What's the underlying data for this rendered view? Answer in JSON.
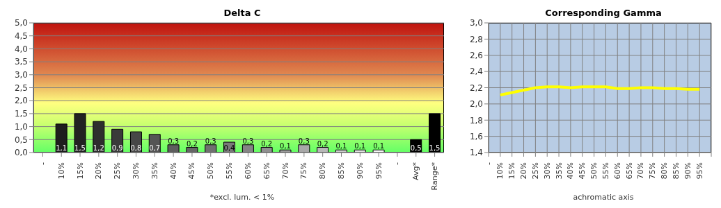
{
  "chart_data": [
    {
      "type": "bar",
      "title": "Delta C",
      "xlabel": "*excl. lum. < 1%",
      "categories": [
        "-",
        "10%",
        "15%",
        "20%",
        "25%",
        "30%",
        "35%",
        "40%",
        "45%",
        "50%",
        "55%",
        "60%",
        "65%",
        "70%",
        "75%",
        "80%",
        "85%",
        "90%",
        "95%",
        "-",
        "Avg*",
        "Range*"
      ],
      "values": [
        null,
        1.1,
        1.5,
        1.2,
        0.9,
        0.8,
        0.7,
        0.3,
        0.2,
        0.3,
        0.4,
        0.3,
        0.2,
        0.1,
        0.3,
        0.2,
        0.1,
        0.1,
        0.1,
        null,
        0.5,
        1.5
      ],
      "value_labels": [
        null,
        "1,1",
        "1,5",
        "1,2",
        "0,9",
        "0,8",
        "0,7",
        "0,3",
        "0,2",
        "0,3",
        "0,4",
        "0,3",
        "0,2",
        "0,1",
        "0,3",
        "0,2",
        "0,1",
        "0,1",
        "0,1",
        null,
        "0,5",
        "1,5"
      ],
      "colors": [
        "#000000",
        "#1e1e1e",
        "#222222",
        "#2e2e2e",
        "#3a3a3a",
        "#474747",
        "#555555",
        "#5e5e5e",
        "#666666",
        "#707070",
        "#7a7a7a",
        "#858585",
        "#909090",
        "#9c9c9c",
        "#a8a8a8",
        "#b8b8b8",
        "#cccccc",
        "#e0e0e0",
        "#f5f5f5",
        "#000000",
        "#000000",
        "#000000"
      ],
      "ylim": [
        0,
        5
      ],
      "yticks": [
        {
          "value": 0,
          "label": "0,0"
        },
        {
          "value": 0.5,
          "label": "0,5"
        },
        {
          "value": 1,
          "label": "1,0"
        },
        {
          "value": 1.5,
          "label": "1,5"
        },
        {
          "value": 2,
          "label": "2,0"
        },
        {
          "value": 2.5,
          "label": "2,5"
        },
        {
          "value": 3,
          "label": "3,0"
        },
        {
          "value": 3.5,
          "label": "3,5"
        },
        {
          "value": 4,
          "label": "4,0"
        },
        {
          "value": 4.5,
          "label": "4,5"
        },
        {
          "value": 5,
          "label": "5,0"
        }
      ],
      "grid": "y"
    },
    {
      "type": "line",
      "title": "Corresponding Gamma",
      "xlabel": "achromatic axis",
      "categories": [
        "-",
        "10%",
        "15%",
        "20%",
        "25%",
        "30%",
        "35%",
        "40%",
        "45%",
        "50%",
        "55%",
        "60%",
        "65%",
        "70%",
        "75%",
        "80%",
        "85%",
        "90%",
        "95%",
        null
      ],
      "series": [
        {
          "color": "#ffff00",
          "values": [
            null,
            2.11,
            2.14,
            2.17,
            2.2,
            2.21,
            2.21,
            2.2,
            2.21,
            2.21,
            2.21,
            2.19,
            2.19,
            2.2,
            2.2,
            2.19,
            2.19,
            2.18,
            2.18,
            null
          ]
        }
      ],
      "ylim": [
        1.4,
        3
      ],
      "yticks": [
        {
          "value": 1.4,
          "label": "1,4"
        },
        {
          "value": 1.6,
          "label": "1,6"
        },
        {
          "value": 1.8,
          "label": "1,8"
        },
        {
          "value": 2,
          "label": "2,0"
        },
        {
          "value": 2.2,
          "label": "2,2"
        },
        {
          "value": 2.4,
          "label": "2,4"
        },
        {
          "value": 2.6,
          "label": "2,6"
        },
        {
          "value": 2.8,
          "label": "2,8"
        },
        {
          "value": 3,
          "label": "3,0"
        }
      ],
      "grid": true,
      "marker": "none"
    }
  ]
}
